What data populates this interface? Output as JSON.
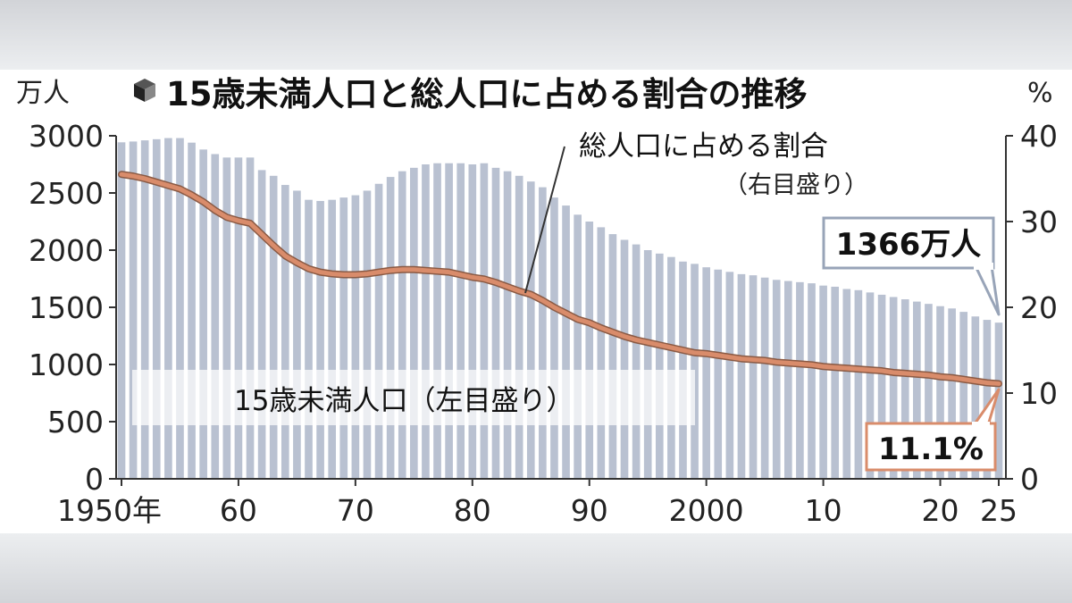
{
  "chart_data": {
    "type": "bar+line",
    "title": "15歳未満人口と総人口に占める割合の推移",
    "left_axis": {
      "unit": "万人",
      "ticks": [
        "0",
        "500",
        "1000",
        "1500",
        "2000",
        "2500",
        "3000"
      ],
      "ylim": [
        0,
        3000
      ]
    },
    "right_axis": {
      "unit": "%",
      "ticks": [
        "0",
        "10",
        "20",
        "30",
        "40"
      ],
      "ylim": [
        0,
        40
      ]
    },
    "x_tick_labels": [
      {
        "year": 1950,
        "label": "1950年"
      },
      {
        "year": 1960,
        "label": "60"
      },
      {
        "year": 1970,
        "label": "70"
      },
      {
        "year": 1980,
        "label": "80"
      },
      {
        "year": 1990,
        "label": "90"
      },
      {
        "year": 2000,
        "label": "2000"
      },
      {
        "year": 2010,
        "label": "10"
      },
      {
        "year": 2020,
        "label": "20"
      },
      {
        "year": 2025,
        "label": "25"
      }
    ],
    "years": [
      1950,
      1951,
      1952,
      1953,
      1954,
      1955,
      1956,
      1957,
      1958,
      1959,
      1960,
      1961,
      1962,
      1963,
      1964,
      1965,
      1966,
      1967,
      1968,
      1969,
      1970,
      1971,
      1972,
      1973,
      1974,
      1975,
      1976,
      1977,
      1978,
      1979,
      1980,
      1981,
      1982,
      1983,
      1984,
      1985,
      1986,
      1987,
      1988,
      1989,
      1990,
      1991,
      1992,
      1993,
      1994,
      1995,
      1996,
      1997,
      1998,
      1999,
      2000,
      2001,
      2002,
      2003,
      2004,
      2005,
      2006,
      2007,
      2008,
      2009,
      2010,
      2011,
      2012,
      2013,
      2014,
      2015,
      2016,
      2017,
      2018,
      2019,
      2020,
      2021,
      2022,
      2023,
      2024,
      2025
    ],
    "series": [
      {
        "name": "15歳未満人口（左目盛り）",
        "axis": "left",
        "color": "#b9c1d1",
        "values": [
          2943,
          2950,
          2960,
          2970,
          2980,
          2980,
          2940,
          2880,
          2840,
          2810,
          2810,
          2810,
          2700,
          2650,
          2570,
          2520,
          2440,
          2430,
          2440,
          2460,
          2480,
          2520,
          2580,
          2640,
          2690,
          2720,
          2750,
          2760,
          2760,
          2760,
          2750,
          2760,
          2720,
          2690,
          2650,
          2600,
          2550,
          2460,
          2390,
          2310,
          2250,
          2200,
          2140,
          2090,
          2050,
          2000,
          1970,
          1940,
          1900,
          1880,
          1850,
          1830,
          1810,
          1790,
          1780,
          1760,
          1740,
          1730,
          1720,
          1710,
          1690,
          1680,
          1660,
          1650,
          1630,
          1610,
          1590,
          1570,
          1550,
          1530,
          1510,
          1490,
          1460,
          1420,
          1390,
          1366
        ]
      },
      {
        "name": "総人口に占める割合（右目盛り）",
        "axis": "right",
        "color": "#d98c6b",
        "values": [
          35.5,
          35.3,
          35.0,
          34.6,
          34.2,
          33.8,
          33.1,
          32.3,
          31.3,
          30.5,
          30.1,
          29.8,
          28.5,
          27.2,
          26.0,
          25.2,
          24.5,
          24.1,
          23.9,
          23.8,
          23.8,
          23.9,
          24.1,
          24.3,
          24.4,
          24.4,
          24.3,
          24.2,
          24.1,
          23.8,
          23.5,
          23.3,
          22.9,
          22.4,
          21.9,
          21.5,
          20.8,
          20.0,
          19.3,
          18.6,
          18.2,
          17.6,
          17.1,
          16.6,
          16.2,
          15.9,
          15.6,
          15.3,
          15.0,
          14.7,
          14.6,
          14.4,
          14.2,
          14.0,
          13.9,
          13.8,
          13.6,
          13.5,
          13.4,
          13.3,
          13.1,
          13.0,
          12.9,
          12.8,
          12.7,
          12.6,
          12.4,
          12.3,
          12.2,
          12.1,
          11.9,
          11.8,
          11.6,
          11.4,
          11.2,
          11.1
        ]
      }
    ],
    "annotations": {
      "line_label": "総人口に占める割合",
      "line_label_sub": "（右目盛り）",
      "bar_label": "15歳未満人口（左目盛り）",
      "last_bar_callout": "1366万人",
      "last_line_callout": "11.1%"
    },
    "grid": false,
    "colors": {
      "bar": "#b9c1d1",
      "line": "#d98c6b",
      "line_edge": "#8a5a44",
      "callout_bar_border": "#98a4b8",
      "callout_line_border": "#d98c6b"
    }
  }
}
